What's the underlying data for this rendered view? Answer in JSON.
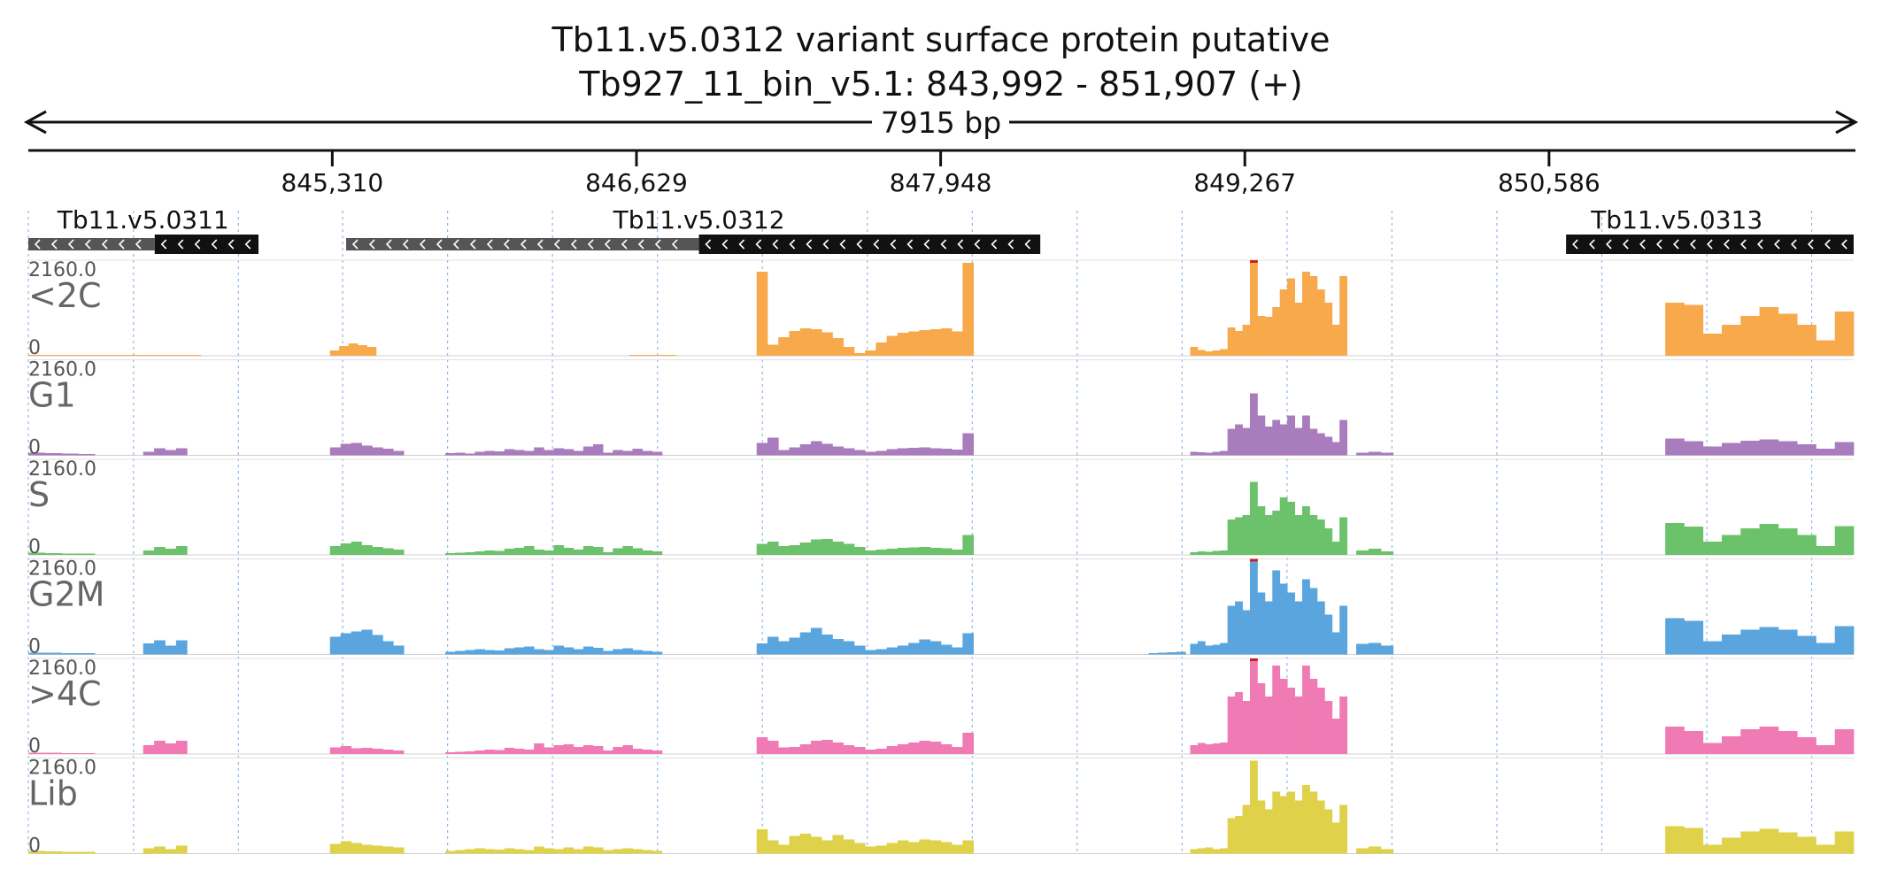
{
  "header": {
    "title": "Tb11.v5.0312  variant surface protein  putative",
    "subtitle": "Tb927_11_bin_v5.1: 843,992 - 851,907 (+)",
    "span_label": "7915 bp"
  },
  "colors": {
    "<2C": "#f7a94b",
    "G1": "#a97cbd",
    "S": "#6cc26a",
    "G2M": "#5aa5dd",
    ">4C": "#f07ab3",
    "Lib": "#dfd24a",
    "gene_dark": "#111111",
    "gene_light": "#555555",
    "grid": "#8fb8e6",
    "clip": "#d02020"
  },
  "chart_data": {
    "type": "area",
    "title": "Tb11.v5.0312  variant surface protein  putative",
    "xlabel": "Tb927_11_bin_v5.1: 843,992 - 851,907 (+)",
    "ylabel": "",
    "xlim": [
      843992,
      851907
    ],
    "ylim": [
      0,
      2160
    ],
    "x_ticks": [
      845310,
      846629,
      847948,
      849267,
      850586
    ],
    "x_tick_labels": [
      "845,310",
      "846,629",
      "847,948",
      "849,267",
      "850,586"
    ],
    "y_max_label": "2160.0",
    "y_min_label": "0",
    "genes": [
      {
        "name": "Tb11.v5.0311",
        "label_pos": 844490,
        "parts": [
          {
            "start": 843992,
            "end": 844540,
            "kind": "utr"
          },
          {
            "start": 844540,
            "end": 844990,
            "kind": "cds"
          }
        ]
      },
      {
        "name": "Tb11.v5.0312",
        "label_pos": 846900,
        "parts": [
          {
            "start": 845370,
            "end": 846900,
            "kind": "utr"
          },
          {
            "start": 846900,
            "end": 848380,
            "kind": "cds"
          }
        ]
      },
      {
        "name": "Tb11.v5.0313",
        "label_pos": 851140,
        "parts": [
          {
            "start": 850660,
            "end": 851907,
            "kind": "cds"
          }
        ]
      }
    ],
    "grid_x": [
      843992,
      844448,
      844903,
      845355,
      845810,
      846265,
      846720,
      847175,
      847630,
      848085,
      848540,
      848995,
      849450,
      849905,
      850360,
      850815,
      851270,
      851725
    ],
    "series": [
      {
        "name": "<2C",
        "segments": [
          {
            "start": 843992,
            "end": 844740,
            "values": [
              10,
              10,
              10,
              10,
              10
            ]
          },
          {
            "start": 845300,
            "end": 845500,
            "values": [
              120,
              220,
              280,
              240,
              200
            ]
          },
          {
            "start": 846600,
            "end": 846800,
            "values": [
              15,
              15,
              15
            ]
          },
          {
            "start": 847150,
            "end": 848090,
            "values": [
              1900,
              250,
              420,
              560,
              620,
              600,
              530,
              400,
              200,
              60,
              120,
              300,
              450,
              520,
              550,
              580,
              600,
              620,
              550,
              2100
            ]
          },
          {
            "start": 849030,
            "end": 849710,
            "values": [
              200,
              130,
              100,
              120,
              150,
              640,
              560,
              700,
              2160,
              900,
              880,
              1100,
              1500,
              1750,
              1200,
              1900,
              1800,
              1500,
              1200,
              700,
              1800
            ]
          },
          {
            "start": 851090,
            "end": 851907,
            "values": [
              1200,
              1150,
              500,
              700,
              900,
              1100,
              950,
              700,
              350,
              1000
            ]
          }
        ]
      },
      {
        "name": "G1",
        "segments": [
          {
            "start": 843992,
            "end": 844280,
            "values": [
              60,
              50,
              40,
              30
            ]
          },
          {
            "start": 844490,
            "end": 844680,
            "values": [
              80,
              160,
              120,
              160
            ]
          },
          {
            "start": 845300,
            "end": 845620,
            "values": [
              180,
              260,
              280,
              220,
              180,
              150,
              100
            ]
          },
          {
            "start": 845800,
            "end": 846740,
            "values": [
              50,
              60,
              40,
              80,
              100,
              90,
              140,
              120,
              100,
              180,
              120,
              160,
              140,
              100,
              200,
              250,
              60,
              120,
              100,
              150,
              100,
              80
            ]
          },
          {
            "start": 847150,
            "end": 848090,
            "values": [
              280,
              400,
              120,
              180,
              250,
              320,
              260,
              200,
              160,
              120,
              80,
              100,
              140,
              160,
              170,
              180,
              160,
              150,
              130,
              500
            ]
          },
          {
            "start": 849030,
            "end": 849710,
            "values": [
              80,
              70,
              60,
              80,
              100,
              600,
              700,
              620,
              1400,
              900,
              650,
              800,
              700,
              900,
              620,
              900,
              600,
              500,
              420,
              300,
              800
            ]
          },
          {
            "start": 849750,
            "end": 849910,
            "values": [
              60,
              80,
              60
            ]
          },
          {
            "start": 851090,
            "end": 851907,
            "values": [
              380,
              320,
              200,
              280,
              330,
              360,
              320,
              250,
              150,
              300
            ]
          }
        ]
      },
      {
        "name": "S",
        "segments": [
          {
            "start": 843992,
            "end": 844280,
            "values": [
              50,
              40,
              30,
              30
            ]
          },
          {
            "start": 844490,
            "end": 844680,
            "values": [
              100,
              180,
              140,
              200
            ]
          },
          {
            "start": 845300,
            "end": 845620,
            "values": [
              200,
              260,
              300,
              220,
              180,
              150,
              120
            ]
          },
          {
            "start": 845800,
            "end": 846740,
            "values": [
              40,
              50,
              60,
              80,
              100,
              90,
              140,
              160,
              200,
              120,
              100,
              220,
              160,
              120,
              200,
              180,
              60,
              150,
              200,
              150,
              100,
              80
            ]
          },
          {
            "start": 847150,
            "end": 848090,
            "values": [
              250,
              300,
              200,
              220,
              280,
              350,
              360,
              300,
              250,
              180,
              100,
              120,
              140,
              160,
              170,
              180,
              160,
              150,
              120,
              450
            ]
          },
          {
            "start": 849030,
            "end": 849710,
            "values": [
              60,
              80,
              70,
              90,
              100,
              800,
              850,
              900,
              1650,
              1100,
              900,
              1000,
              1300,
              1200,
              900,
              1100,
              900,
              800,
              600,
              300,
              850
            ]
          },
          {
            "start": 849750,
            "end": 849910,
            "values": [
              100,
              140,
              80
            ]
          },
          {
            "start": 851090,
            "end": 851907,
            "values": [
              720,
              640,
              300,
              450,
              600,
              700,
              600,
              450,
              200,
              650
            ]
          }
        ]
      },
      {
        "name": "G2M",
        "segments": [
          {
            "start": 843992,
            "end": 844280,
            "values": [
              40,
              40,
              30,
              30
            ]
          },
          {
            "start": 844490,
            "end": 844680,
            "values": [
              250,
              320,
              200,
              320
            ]
          },
          {
            "start": 845300,
            "end": 845620,
            "values": [
              400,
              480,
              520,
              560,
              440,
              300,
              200
            ]
          },
          {
            "start": 845800,
            "end": 846740,
            "values": [
              60,
              80,
              100,
              120,
              100,
              90,
              140,
              160,
              180,
              120,
              100,
              200,
              160,
              120,
              180,
              150,
              80,
              120,
              140,
              100,
              80,
              60
            ]
          },
          {
            "start": 847150,
            "end": 848090,
            "values": [
              250,
              400,
              300,
              380,
              500,
              600,
              450,
              350,
              300,
              200,
              100,
              120,
              160,
              200,
              260,
              340,
              300,
              220,
              160,
              480
            ]
          },
          {
            "start": 848850,
            "end": 849010,
            "values": [
              30,
              40,
              50,
              60
            ]
          },
          {
            "start": 849030,
            "end": 849710,
            "values": [
              240,
              300,
              200,
              220,
              260,
              1100,
              1200,
              1000,
              2160,
              1400,
              1200,
              1900,
              1600,
              1400,
              1200,
              1700,
              1500,
              1200,
              900,
              500,
              1100
            ]
          },
          {
            "start": 849750,
            "end": 849910,
            "values": [
              240,
              260,
              200
            ]
          },
          {
            "start": 851090,
            "end": 851907,
            "values": [
              820,
              760,
              300,
              450,
              560,
              620,
              560,
              420,
              260,
              640
            ]
          }
        ]
      },
      {
        "name": ">4C",
        "segments": [
          {
            "start": 843992,
            "end": 844280,
            "values": [
              30,
              30,
              20,
              20
            ]
          },
          {
            "start": 844490,
            "end": 844680,
            "values": [
              200,
              300,
              240,
              300
            ]
          },
          {
            "start": 845300,
            "end": 845620,
            "values": [
              150,
              180,
              130,
              140,
              120,
              100,
              80
            ]
          },
          {
            "start": 845800,
            "end": 846740,
            "values": [
              40,
              50,
              60,
              80,
              100,
              90,
              140,
              120,
              100,
              240,
              150,
              200,
              220,
              160,
              200,
              180,
              80,
              160,
              200,
              120,
              100,
              80
            ]
          },
          {
            "start": 847150,
            "end": 848090,
            "values": [
              380,
              300,
              150,
              160,
              220,
              300,
              320,
              260,
              200,
              160,
              100,
              120,
              180,
              220,
              260,
              300,
              280,
              220,
              160,
              480
            ]
          },
          {
            "start": 849030,
            "end": 849710,
            "values": [
              200,
              250,
              220,
              240,
              260,
              1300,
              1400,
              1200,
              2160,
              1600,
              1300,
              2000,
              1700,
              1500,
              1300,
              2000,
              1700,
              1500,
              1200,
              800,
              1300
            ]
          },
          {
            "start": 851090,
            "end": 851907,
            "values": [
              620,
              520,
              250,
              400,
              560,
              620,
              520,
              380,
              200,
              560
            ]
          }
        ]
      },
      {
        "name": "Lib",
        "segments": [
          {
            "start": 843992,
            "end": 844280,
            "values": [
              60,
              50,
              40,
              40
            ]
          },
          {
            "start": 844490,
            "end": 844680,
            "values": [
              120,
              160,
              100,
              180
            ]
          },
          {
            "start": 845300,
            "end": 845620,
            "values": [
              220,
              280,
              240,
              200,
              180,
              160,
              140
            ]
          },
          {
            "start": 845800,
            "end": 846740,
            "values": [
              60,
              80,
              100,
              120,
              100,
              90,
              120,
              100,
              80,
              160,
              120,
              100,
              140,
              100,
              160,
              140,
              80,
              100,
              120,
              100,
              80,
              60
            ]
          },
          {
            "start": 847150,
            "end": 848090,
            "values": [
              550,
              300,
              200,
              400,
              450,
              380,
              300,
              420,
              320,
              240,
              160,
              180,
              240,
              300,
              260,
              320,
              300,
              260,
              200,
              300
            ]
          },
          {
            "start": 849030,
            "end": 849710,
            "values": [
              100,
              120,
              140,
              100,
              120,
              800,
              850,
              1100,
              2100,
              1200,
              1000,
              1400,
              1300,
              1400,
              1200,
              1550,
              1400,
              1200,
              1000,
              700,
              1100
            ]
          },
          {
            "start": 849750,
            "end": 849910,
            "values": [
              120,
              160,
              100
            ]
          },
          {
            "start": 851090,
            "end": 851907,
            "values": [
              620,
              580,
              200,
              360,
              500,
              560,
              480,
              380,
              200,
              500
            ]
          }
        ]
      }
    ]
  }
}
